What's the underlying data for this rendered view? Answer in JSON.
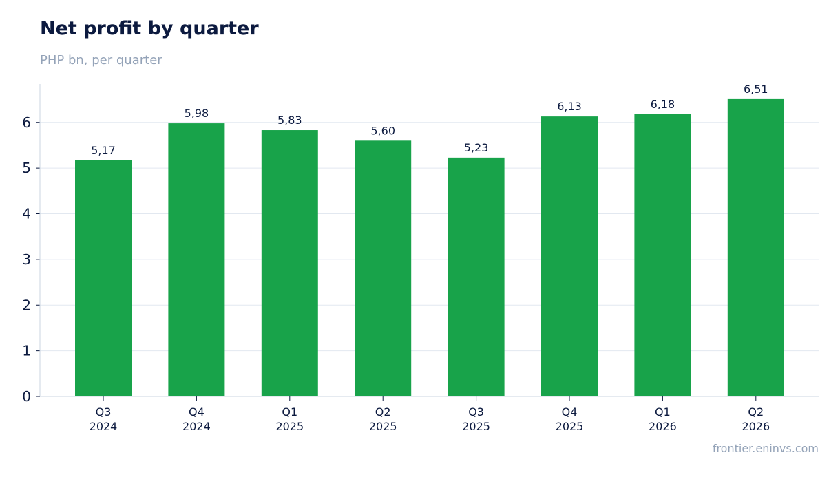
{
  "chart_data": {
    "type": "bar",
    "title": "Net profit by quarter",
    "subtitle": "PHP bn, per quarter",
    "source": "frontier.eninvs.com",
    "categories": [
      [
        "Q3",
        "2024"
      ],
      [
        "Q4",
        "2024"
      ],
      [
        "Q1",
        "2025"
      ],
      [
        "Q2",
        "2025"
      ],
      [
        "Q3",
        "2025"
      ],
      [
        "Q4",
        "2025"
      ],
      [
        "Q1",
        "2026"
      ],
      [
        "Q2",
        "2026"
      ]
    ],
    "values": [
      5.17,
      5.98,
      5.83,
      5.6,
      5.23,
      6.13,
      6.18,
      6.51
    ],
    "data_labels": [
      "5,17",
      "5,98",
      "5,83",
      "5,60",
      "5,23",
      "6,13",
      "6,18",
      "6,51"
    ],
    "y_ticks": [
      0,
      1,
      2,
      3,
      4,
      5,
      6
    ],
    "ylim": [
      0,
      6.84
    ],
    "grid": true,
    "bar_color": "#18a34a",
    "xlabel": "",
    "ylabel": ""
  }
}
